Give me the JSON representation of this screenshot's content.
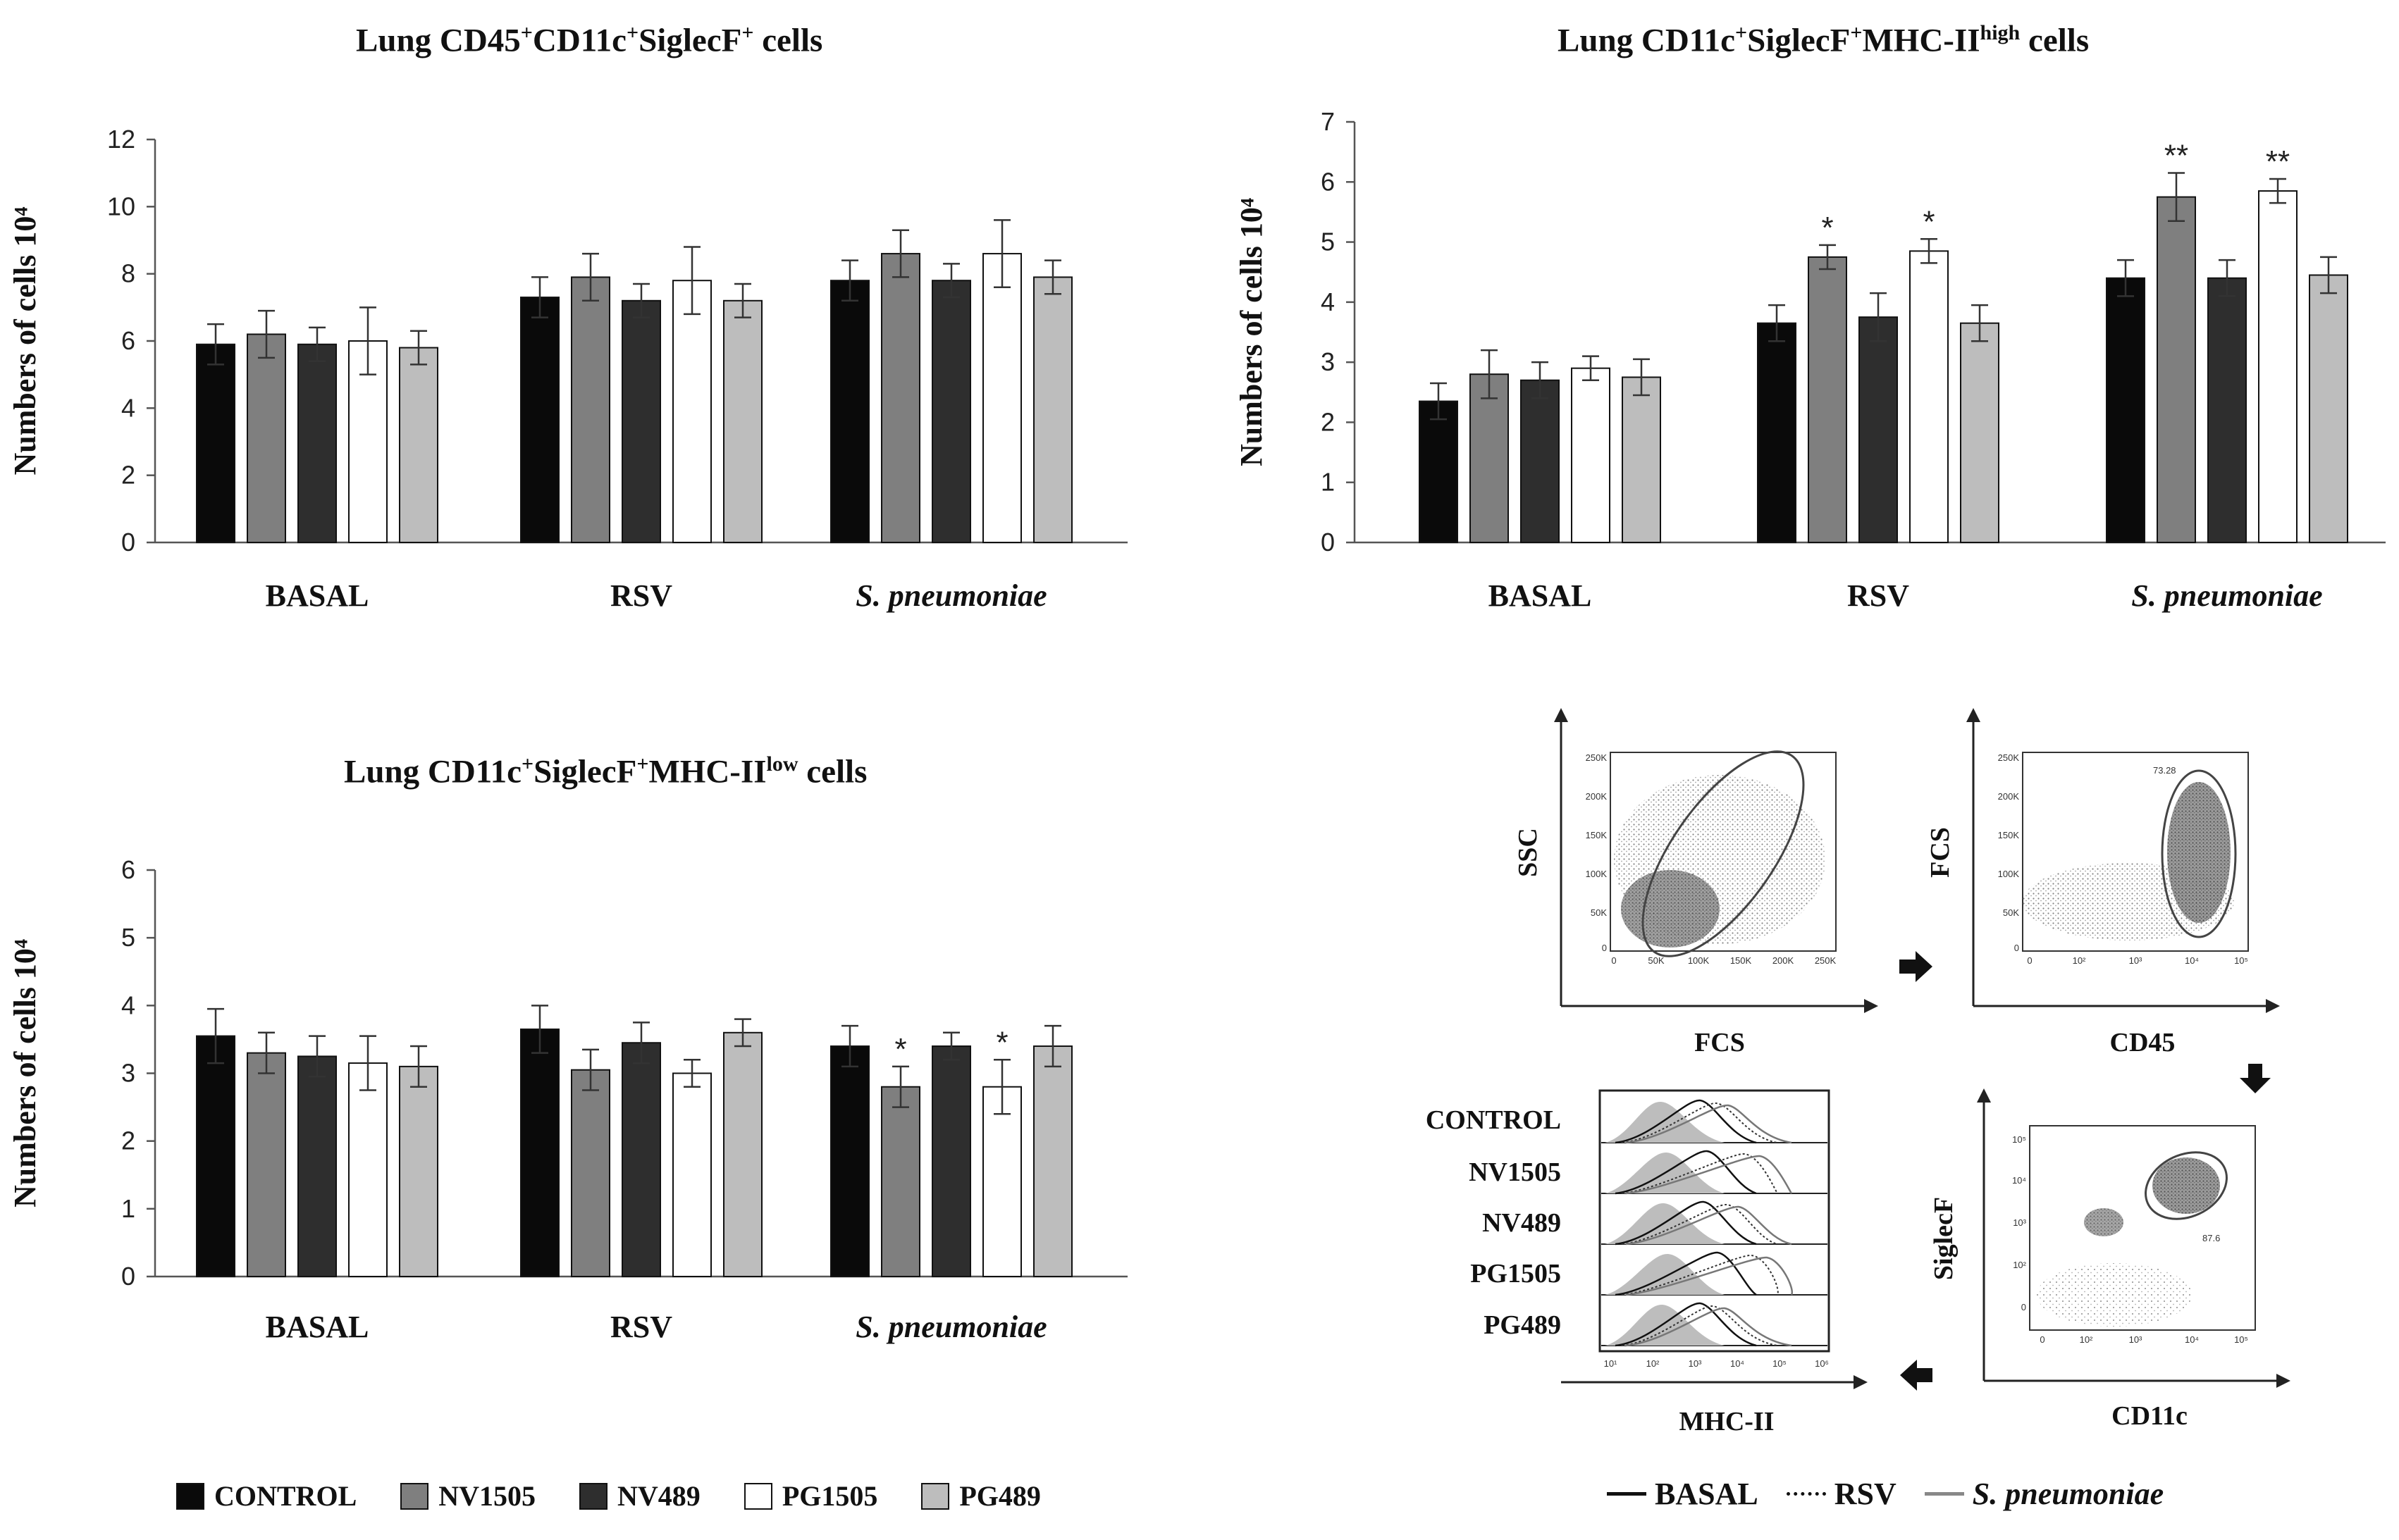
{
  "colors": {
    "CONTROL": "#0a0a0a",
    "NV1505": "#7f7f7f",
    "NV489": "#2e2e2e",
    "PG1505": "#ffffff",
    "PG489": "#bdbdbd"
  },
  "chart_data": [
    {
      "type": "bar",
      "title_pre": "Lung CD45",
      "title_sup1": "+",
      "title_mid": "CD11c",
      "title_sup2": "+",
      "title_mid2": "SiglecF",
      "title_sup3": "+",
      "title_post": " cells",
      "ylabel": "Numbers of cells 10⁴",
      "ylim": [
        0,
        12
      ],
      "yticks": [
        "0",
        "2",
        "4",
        "6",
        "8",
        "10",
        "12"
      ],
      "categories": [
        "BASAL",
        "RSV",
        "S. pneumoniae"
      ],
      "italic_categories": [
        false,
        false,
        true
      ],
      "series": [
        {
          "name": "CONTROL",
          "values": [
            5.9,
            7.3,
            7.8
          ],
          "errors": [
            0.6,
            0.6,
            0.6
          ],
          "stars": [
            "",
            "",
            ""
          ]
        },
        {
          "name": "NV1505",
          "values": [
            6.2,
            7.9,
            8.6
          ],
          "errors": [
            0.7,
            0.7,
            0.7
          ],
          "stars": [
            "",
            "",
            ""
          ]
        },
        {
          "name": "NV489",
          "values": [
            5.9,
            7.2,
            7.8
          ],
          "errors": [
            0.5,
            0.5,
            0.5
          ],
          "stars": [
            "",
            "",
            ""
          ]
        },
        {
          "name": "PG1505",
          "values": [
            6.0,
            7.8,
            8.6
          ],
          "errors": [
            1.0,
            1.0,
            1.0
          ],
          "stars": [
            "",
            "",
            ""
          ]
        },
        {
          "name": "PG489",
          "values": [
            5.8,
            7.2,
            7.9
          ],
          "errors": [
            0.5,
            0.5,
            0.5
          ],
          "stars": [
            "",
            "",
            ""
          ]
        }
      ]
    },
    {
      "type": "bar",
      "title_pre": "Lung CD11c",
      "title_sup1": "+",
      "title_mid": "SiglecF",
      "title_sup2": "+",
      "title_mid2": "MHC-II",
      "title_sup3": "high",
      "title_post": " cells",
      "ylabel": "Numbers of cells 10⁴",
      "ylim": [
        0,
        7
      ],
      "yticks": [
        "0",
        "1",
        "2",
        "3",
        "4",
        "5",
        "6",
        "7"
      ],
      "categories": [
        "BASAL",
        "RSV",
        "S. pneumoniae"
      ],
      "italic_categories": [
        false,
        false,
        true
      ],
      "series": [
        {
          "name": "CONTROL",
          "values": [
            2.35,
            3.65,
            4.4
          ],
          "errors": [
            0.3,
            0.3,
            0.3
          ],
          "stars": [
            "",
            "",
            ""
          ]
        },
        {
          "name": "NV1505",
          "values": [
            2.8,
            4.75,
            5.75
          ],
          "errors": [
            0.4,
            0.2,
            0.4
          ],
          "stars": [
            "",
            "*",
            "**"
          ]
        },
        {
          "name": "NV489",
          "values": [
            2.7,
            3.75,
            4.4
          ],
          "errors": [
            0.3,
            0.4,
            0.3
          ],
          "stars": [
            "",
            "",
            ""
          ]
        },
        {
          "name": "PG1505",
          "values": [
            2.9,
            4.85,
            5.85
          ],
          "errors": [
            0.2,
            0.2,
            0.2
          ],
          "stars": [
            "",
            "*",
            "**"
          ]
        },
        {
          "name": "PG489",
          "values": [
            2.75,
            3.65,
            4.45
          ],
          "errors": [
            0.3,
            0.3,
            0.3
          ],
          "stars": [
            "",
            "",
            ""
          ]
        }
      ]
    },
    {
      "type": "bar",
      "title_pre": "Lung CD11c",
      "title_sup1": "+",
      "title_mid": "SiglecF",
      "title_sup2": "+",
      "title_mid2": "MHC-II",
      "title_sup3": "low",
      "title_post": " cells",
      "ylabel": "Numbers of cells 10⁴",
      "ylim": [
        0,
        6
      ],
      "yticks": [
        "0",
        "1",
        "2",
        "3",
        "4",
        "5",
        "6"
      ],
      "categories": [
        "BASAL",
        "RSV",
        "S. pneumoniae"
      ],
      "italic_categories": [
        false,
        false,
        true
      ],
      "series": [
        {
          "name": "CONTROL",
          "values": [
            3.55,
            3.65,
            3.4
          ],
          "errors": [
            0.4,
            0.35,
            0.3
          ],
          "stars": [
            "",
            "",
            ""
          ]
        },
        {
          "name": "NV1505",
          "values": [
            3.3,
            3.05,
            2.8
          ],
          "errors": [
            0.3,
            0.3,
            0.3
          ],
          "stars": [
            "",
            "",
            "*"
          ]
        },
        {
          "name": "NV489",
          "values": [
            3.25,
            3.45,
            3.4
          ],
          "errors": [
            0.3,
            0.3,
            0.2
          ],
          "stars": [
            "",
            "",
            ""
          ]
        },
        {
          "name": "PG1505",
          "values": [
            3.15,
            3.0,
            2.8
          ],
          "errors": [
            0.4,
            0.2,
            0.4
          ],
          "stars": [
            "",
            "",
            "*"
          ]
        },
        {
          "name": "PG489",
          "values": [
            3.1,
            3.6,
            3.4
          ],
          "errors": [
            0.3,
            0.2,
            0.3
          ],
          "stars": [
            "",
            "",
            ""
          ]
        }
      ]
    }
  ],
  "legend": {
    "items": [
      "CONTROL",
      "NV1505",
      "NV489",
      "PG1505",
      "PG489"
    ]
  },
  "flow": {
    "plot1": {
      "ylabel": "SSC",
      "xlabel": "FCS",
      "yticks": [
        "250K",
        "200K",
        "150K",
        "100K",
        "50K",
        "0"
      ],
      "xticks": [
        "0",
        "50K",
        "100K",
        "150K",
        "200K",
        "250K"
      ]
    },
    "plot2": {
      "ylabel": "FCS",
      "xlabel": "CD45",
      "yticks": [
        "250K",
        "200K",
        "150K",
        "100K",
        "50K",
        "0"
      ],
      "xticks": [
        "0",
        "10²",
        "10³",
        "10⁴",
        "10⁵"
      ],
      "gate_label": "73.28"
    },
    "plot3": {
      "ylabel": "SiglecF",
      "xlabel": "CD11c",
      "yticks": [
        "10⁵",
        "10⁴",
        "10³",
        "10²",
        "0"
      ],
      "xticks": [
        "0",
        "10²",
        "10³",
        "10⁴",
        "10⁵"
      ],
      "gate_label": "87.6"
    },
    "hist": {
      "xlabel": "MHC-II",
      "xticks": [
        "10¹",
        "10²",
        "10³",
        "10⁴",
        "10⁵",
        "10⁶"
      ],
      "rows": [
        "CONTROL",
        "NV1505",
        "NV489",
        "PG1505",
        "PG489"
      ]
    },
    "line_legend": [
      {
        "label": "BASAL",
        "style": "solid",
        "italic": false
      },
      {
        "label": "RSV",
        "style": "dotted",
        "italic": false
      },
      {
        "label": "S. pneumoniae",
        "style": "grey",
        "italic": true
      }
    ]
  }
}
